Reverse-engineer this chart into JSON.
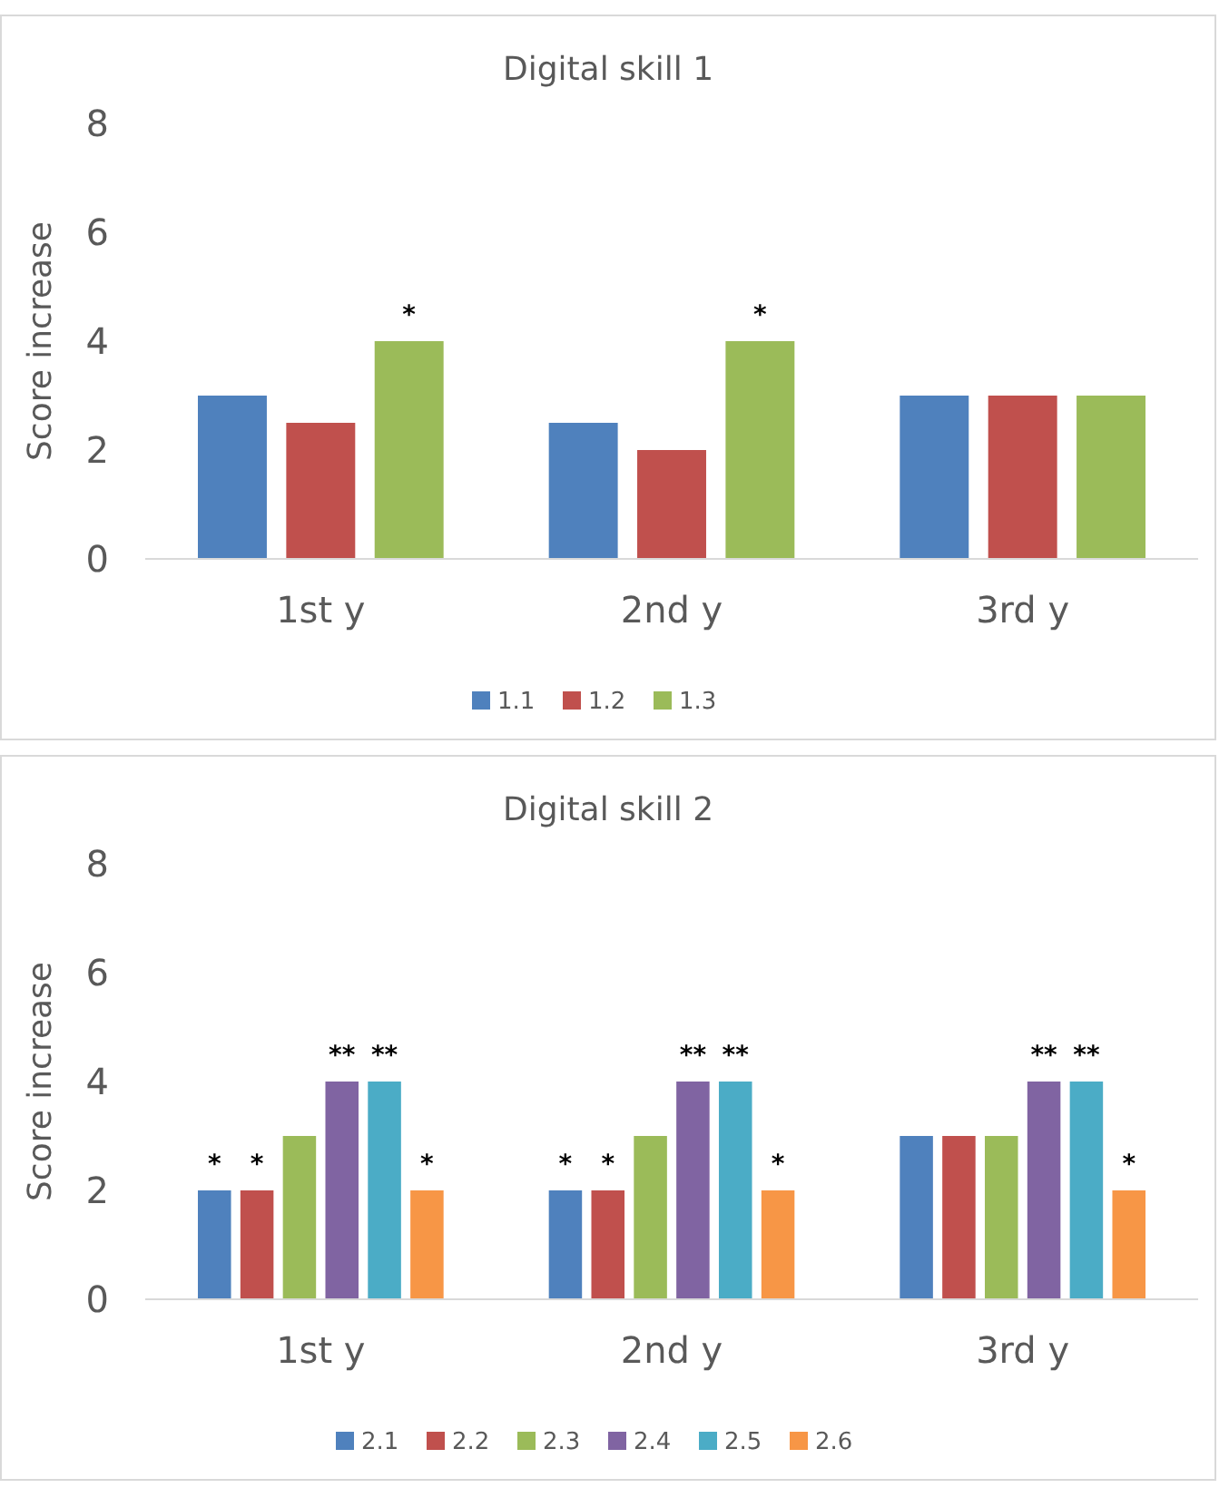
{
  "chart_data": [
    {
      "type": "bar",
      "title": "Digital skill 1",
      "ylabel": "Score increase",
      "categories": [
        "1st y",
        "2nd y",
        "3rd y"
      ],
      "ylim": [
        0,
        8
      ],
      "yticks": [
        0,
        2,
        4,
        6,
        8
      ],
      "legend": "bottom",
      "series": [
        {
          "name": "1.1",
          "color": "#4f81bd",
          "values": [
            3,
            2.5,
            3
          ]
        },
        {
          "name": "1.2",
          "color": "#c0504d",
          "values": [
            2.5,
            2,
            3
          ]
        },
        {
          "name": "1.3",
          "color": "#9bbb59",
          "values": [
            4,
            4,
            3
          ],
          "value_labels": [
            "*",
            "*",
            null
          ]
        }
      ]
    },
    {
      "type": "bar",
      "title": "Digital skill 2",
      "ylabel": "Score increase",
      "categories": [
        "1st y",
        "2nd y",
        "3rd y"
      ],
      "ylim": [
        0,
        8
      ],
      "yticks": [
        0,
        2,
        4,
        6,
        8
      ],
      "legend": "bottom",
      "series": [
        {
          "name": "2.1",
          "color": "#4f81bd",
          "values": [
            2,
            2,
            3
          ],
          "value_labels": [
            "*",
            "*",
            null
          ]
        },
        {
          "name": "2.2",
          "color": "#c0504d",
          "values": [
            2,
            2,
            3
          ],
          "value_labels": [
            "*",
            "*",
            null
          ]
        },
        {
          "name": "2.3",
          "color": "#9bbb59",
          "values": [
            3,
            3,
            3
          ]
        },
        {
          "name": "2.4",
          "color": "#8064a2",
          "values": [
            4,
            4,
            4
          ],
          "value_labels": [
            "**",
            "**",
            "**"
          ]
        },
        {
          "name": "2.5",
          "color": "#4bacc6",
          "values": [
            4,
            4,
            4
          ],
          "value_labels": [
            "**",
            "**",
            "**"
          ]
        },
        {
          "name": "2.6",
          "color": "#f79646",
          "values": [
            2,
            2,
            2
          ],
          "value_labels": [
            "*",
            "*",
            "*"
          ]
        }
      ]
    }
  ]
}
